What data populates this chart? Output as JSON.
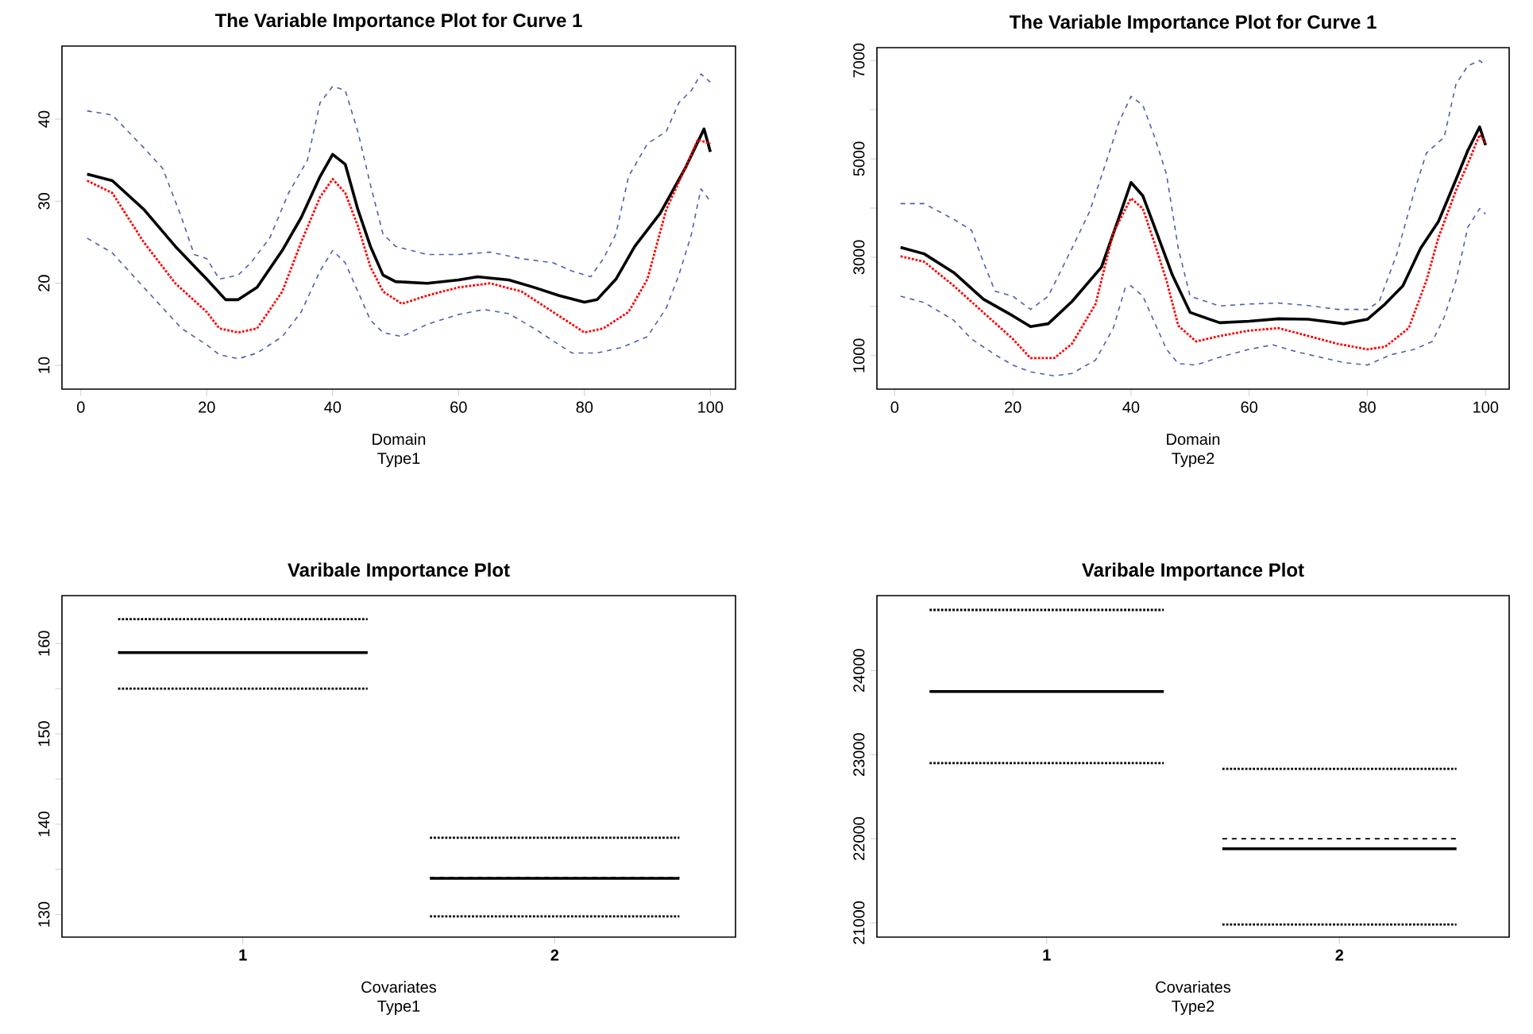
{
  "chart_data": [
    {
      "type": "line",
      "title": "The Variable Importance Plot for Curve 1",
      "xlabel": "Domain",
      "annotations": [
        "Type1"
      ],
      "xlim": [
        -3,
        104
      ],
      "ylim": [
        7.1,
        48.9
      ],
      "xticks": [
        0,
        20,
        40,
        60,
        80,
        100
      ],
      "yticks": [
        10,
        20,
        30,
        40
      ],
      "series": [
        {
          "color": "#4f5fb3",
          "line_style": "dashed",
          "x": [
            1,
            5,
            10,
            13,
            16,
            18,
            20,
            22,
            25,
            27,
            30,
            33,
            36,
            38,
            40,
            42,
            44,
            46,
            48,
            50,
            55,
            60,
            65,
            70,
            75,
            78,
            81,
            83,
            85,
            87,
            90,
            93,
            95,
            97,
            98.5,
            100
          ],
          "values": [
            41,
            40.5,
            36.5,
            34,
            28,
            23.5,
            23,
            20.5,
            21,
            22.5,
            25.5,
            31,
            35,
            42,
            44,
            43.5,
            38.5,
            32,
            26,
            24.5,
            23.5,
            23.5,
            23.8,
            23,
            22.5,
            21.5,
            20.8,
            23,
            26,
            33,
            37,
            38.5,
            42,
            43.5,
            45.5,
            44.5
          ]
        },
        {
          "color": "#000000",
          "line_style": "solid",
          "x": [
            1,
            5,
            10,
            15,
            20,
            23,
            25,
            28,
            32,
            35,
            38,
            40,
            42,
            44,
            46,
            48,
            50,
            55,
            60,
            63,
            68,
            72,
            76,
            80,
            82,
            85,
            88,
            92,
            96,
            99,
            100
          ],
          "values": [
            33.3,
            32.5,
            29,
            24.5,
            20.5,
            18,
            18,
            19.5,
            24,
            28,
            33,
            35.7,
            34.5,
            29,
            24.5,
            21,
            20.2,
            20,
            20.4,
            20.8,
            20.4,
            19.5,
            18.5,
            17.7,
            18,
            20.5,
            24.5,
            28.5,
            34,
            38.8,
            36
          ]
        },
        {
          "color": "#ff0000",
          "line_style": "dotted",
          "x": [
            1,
            5,
            10,
            15,
            20,
            22,
            25,
            28,
            32,
            35,
            38,
            40,
            42,
            44,
            46,
            48,
            51,
            55,
            60,
            65,
            70,
            74,
            78,
            80,
            83,
            87,
            90,
            93,
            96,
            98,
            100
          ],
          "values": [
            32.5,
            31,
            25,
            20,
            16.5,
            14.5,
            14,
            14.5,
            19,
            25,
            30.5,
            32.7,
            31,
            27,
            22,
            19,
            17.5,
            18.5,
            19.5,
            20,
            19,
            17,
            15,
            14,
            14.5,
            16.5,
            20.5,
            29,
            34,
            37.5,
            37
          ]
        },
        {
          "color": "#4f5fb3",
          "line_style": "dashed",
          "x": [
            1,
            5,
            10,
            13,
            16,
            20,
            22,
            25,
            28,
            32,
            35,
            38,
            40,
            42,
            44,
            46,
            48,
            51,
            55,
            60,
            64,
            68,
            72,
            76,
            78,
            82,
            86,
            90,
            93,
            95,
            97,
            98.5,
            100
          ],
          "values": [
            25.5,
            23.7,
            19.5,
            17,
            14.5,
            12.5,
            11.3,
            10.8,
            11.5,
            13.5,
            16.5,
            21.5,
            24,
            22.5,
            19,
            15.5,
            14,
            13.5,
            15,
            16.2,
            16.8,
            16.3,
            14.5,
            12.5,
            11.5,
            11.5,
            12.2,
            13.5,
            17,
            21,
            26,
            31.5,
            30
          ]
        }
      ]
    },
    {
      "type": "line",
      "title": "The Variable Importance Plot for Curve 1",
      "xlabel": "Domain",
      "annotations": [
        "Type2"
      ],
      "xlim": [
        -3,
        104
      ],
      "ylim": [
        320,
        7260
      ],
      "xticks": [
        0,
        20,
        40,
        60,
        80,
        100
      ],
      "yticks": [
        1000,
        {
          "value": 2000,
          "label": null
        },
        3000,
        {
          "value": 4000,
          "label": null
        },
        5000,
        {
          "value": 6000,
          "label": null
        },
        7000
      ],
      "series": [
        {
          "color": "#4f5fb3",
          "line_style": "dashed",
          "x": [
            1,
            5,
            10,
            13,
            15,
            17,
            20,
            23,
            26,
            30,
            33,
            36,
            38,
            40,
            42,
            44,
            46,
            48,
            50,
            55,
            60,
            65,
            70,
            75,
            80,
            82,
            85,
            88,
            90,
            93,
            95,
            97,
            99,
            100
          ],
          "values": [
            4090,
            4090,
            3770,
            3550,
            2910,
            2310,
            2210,
            1940,
            2210,
            3180,
            3930,
            5010,
            5760,
            6270,
            6090,
            5440,
            4690,
            3180,
            2210,
            2010,
            2050,
            2070,
            2020,
            1940,
            1940,
            2100,
            3070,
            4360,
            5120,
            5440,
            6520,
            6890,
            7000,
            6890
          ]
        },
        {
          "color": "#000000",
          "line_style": "solid",
          "x": [
            1,
            5,
            10,
            15,
            20,
            23,
            26,
            30,
            35,
            38,
            40,
            42,
            44,
            47,
            50,
            55,
            60,
            65,
            70,
            76,
            80,
            83,
            86,
            89,
            92,
            95,
            97,
            99,
            100
          ],
          "values": [
            3200,
            3070,
            2690,
            2150,
            1810,
            1590,
            1650,
            2100,
            2800,
            3820,
            4520,
            4250,
            3610,
            2640,
            1880,
            1670,
            1700,
            1750,
            1740,
            1650,
            1740,
            2050,
            2420,
            3180,
            3720,
            4580,
            5170,
            5650,
            5280
          ]
        },
        {
          "color": "#ff0000",
          "line_style": "dotted",
          "x": [
            1,
            5,
            10,
            15,
            20,
            23,
            27,
            30,
            34,
            37,
            40,
            42,
            44,
            46,
            48,
            51,
            55,
            60,
            65,
            70,
            75,
            80,
            83,
            87,
            90,
            92,
            95,
            97,
            99,
            100
          ],
          "values": [
            3020,
            2910,
            2420,
            1880,
            1340,
            950,
            950,
            1240,
            2050,
            3500,
            4200,
            3990,
            3280,
            2530,
            1610,
            1290,
            1400,
            1510,
            1560,
            1400,
            1240,
            1130,
            1180,
            1560,
            2530,
            3390,
            4360,
            4900,
            5490,
            5330
          ]
        },
        {
          "color": "#4f5fb3",
          "line_style": "dashed",
          "x": [
            1,
            5,
            10,
            13,
            17,
            20,
            23,
            27,
            30,
            34,
            37,
            39,
            40,
            42,
            44,
            46,
            48,
            51,
            55,
            60,
            64,
            68,
            72,
            76,
            80,
            84,
            88,
            91,
            93,
            95,
            97,
            99,
            100
          ],
          "values": [
            2210,
            2080,
            1720,
            1340,
            1020,
            810,
            670,
            590,
            640,
            910,
            1560,
            2370,
            2420,
            2210,
            1670,
            1130,
            840,
            810,
            970,
            1130,
            1220,
            1080,
            970,
            860,
            810,
            1020,
            1130,
            1290,
            1780,
            2530,
            3610,
            3990,
            3880
          ]
        }
      ]
    },
    {
      "type": "line",
      "title": "Varibale Importance Plot",
      "xlabel": "Covariates",
      "annotations": [
        "Type1"
      ],
      "xlim": [
        0.42,
        2.58
      ],
      "ylim": [
        127.5,
        165.3
      ],
      "xticks": [
        1,
        2
      ],
      "yticks": [
        130,
        {
          "value": 135,
          "label": null
        },
        140,
        {
          "value": 145,
          "label": null
        },
        150,
        {
          "value": 155,
          "label": null
        },
        160
      ],
      "series": [
        {
          "color": "#000000",
          "line_style": "dotted",
          "x": [
            0.6,
            1.4,
            1.5,
            1.6,
            2.4
          ],
          "values": [
            162.7,
            162.7,
            null,
            138.5,
            138.5
          ]
        },
        {
          "color": "#000000",
          "line_style": "dashed",
          "x": [
            0.6,
            1.4,
            1.5,
            1.6,
            2.4
          ],
          "values": [
            159,
            159,
            null,
            134.1,
            134.1
          ]
        },
        {
          "color": "#000000",
          "line_style": "solid",
          "x": [
            0.6,
            1.4,
            1.5,
            1.6,
            2.4
          ],
          "values": [
            159,
            159,
            null,
            134,
            134
          ]
        },
        {
          "color": "#000000",
          "line_style": "dotted",
          "x": [
            0.6,
            1.4,
            1.5,
            1.6,
            2.4
          ],
          "values": [
            155,
            155,
            null,
            129.8,
            129.8
          ]
        }
      ]
    },
    {
      "type": "line",
      "title": "Varibale Importance Plot",
      "xlabel": "Covariates",
      "annotations": [
        "Type2"
      ],
      "xlim": [
        0.42,
        2.58
      ],
      "ylim": [
        20830,
        24890
      ],
      "xticks": [
        1,
        2
      ],
      "yticks": [
        21000,
        22000,
        23000,
        24000
      ],
      "series": [
        {
          "color": "#000000",
          "line_style": "dotted",
          "x": [
            0.6,
            1.4,
            1.5,
            1.6,
            2.4
          ],
          "values": [
            24720,
            24720,
            null,
            22830,
            22830
          ]
        },
        {
          "color": "#000000",
          "line_style": "dashed",
          "x": [
            0.6,
            1.4,
            1.5,
            1.6,
            2.4
          ],
          "values": [
            23750,
            23750,
            null,
            22000,
            22000
          ]
        },
        {
          "color": "#000000",
          "line_style": "solid",
          "x": [
            0.6,
            1.4,
            1.5,
            1.6,
            2.4
          ],
          "values": [
            23750,
            23750,
            null,
            21880,
            21880
          ]
        },
        {
          "color": "#000000",
          "line_style": "dotted",
          "x": [
            0.6,
            1.4,
            1.5,
            1.6,
            2.4
          ],
          "values": [
            22900,
            22900,
            null,
            20980,
            20980
          ]
        }
      ]
    }
  ]
}
